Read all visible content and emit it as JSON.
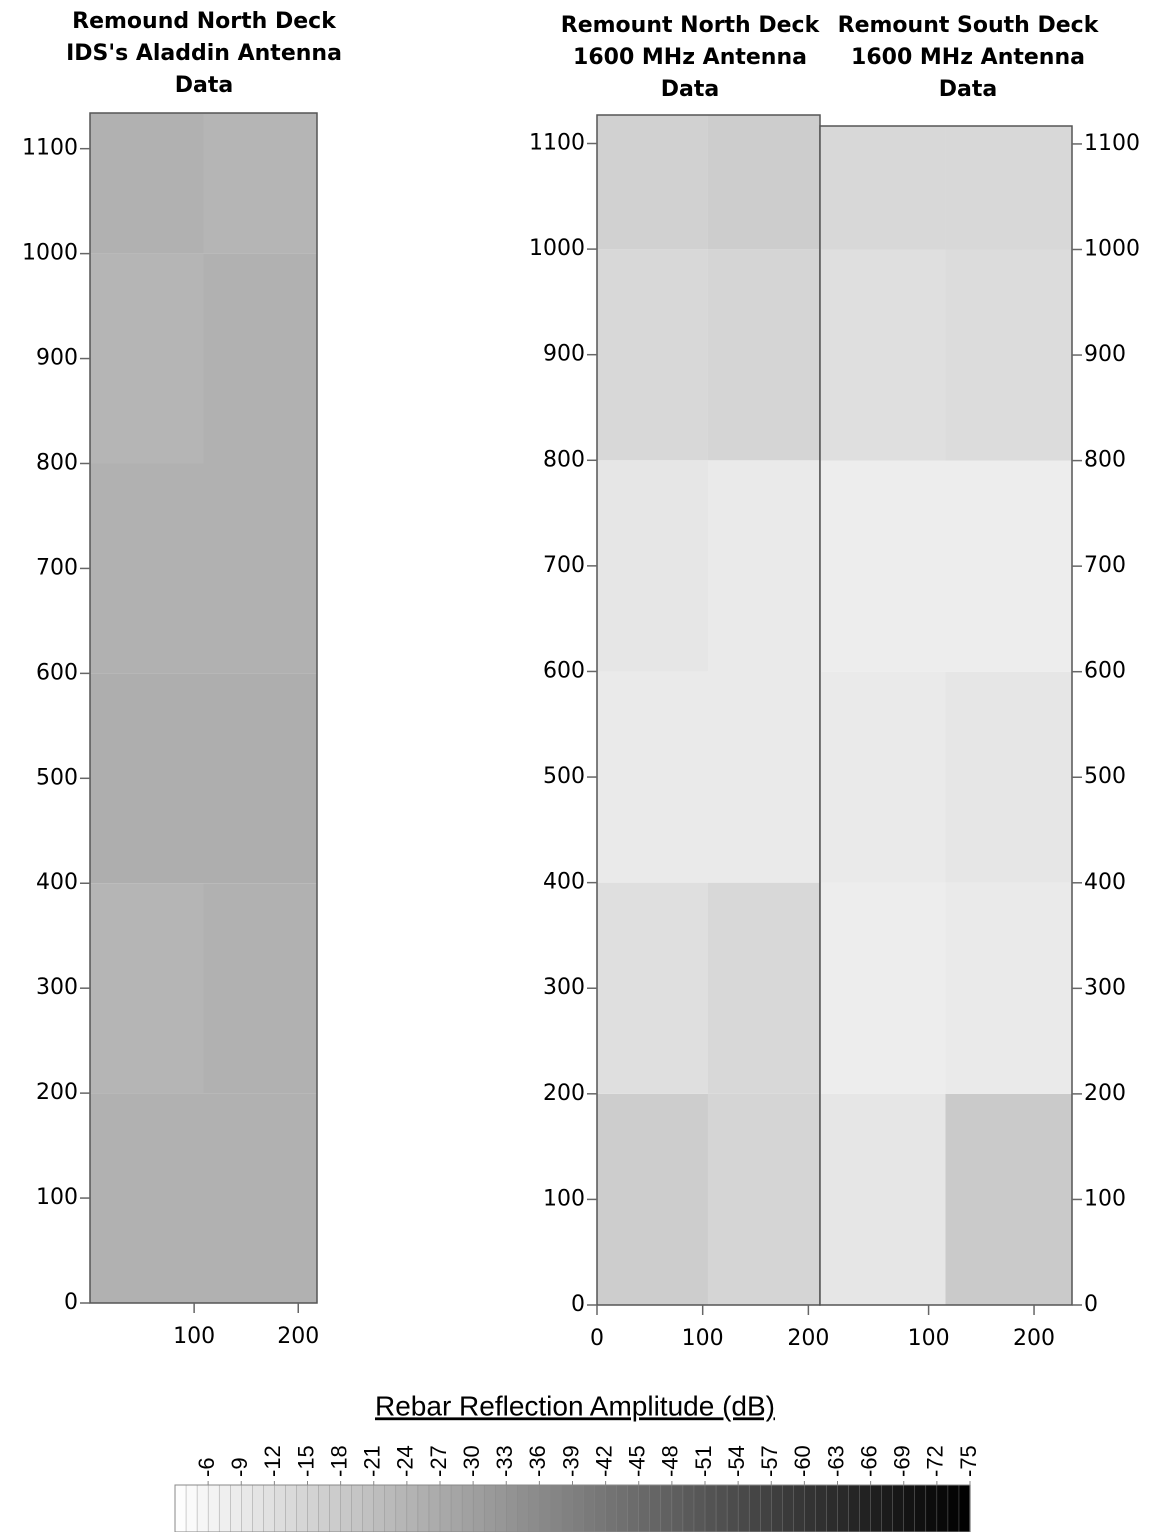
{
  "chart_data": [
    {
      "type": "heatmap",
      "title": [
        "Remound North Deck",
        "IDS's Aladdin Antenna",
        "Data"
      ],
      "yaxis_side": "left",
      "xlim": [
        0,
        218
      ],
      "ylim": [
        0,
        1134
      ],
      "xticks": [
        100,
        200
      ],
      "yticks": [
        0,
        100,
        200,
        300,
        400,
        500,
        600,
        700,
        800,
        900,
        1000,
        1100
      ],
      "xbins": [
        0,
        109,
        218
      ],
      "ybins": [
        0,
        200,
        400,
        600,
        800,
        1000,
        1134
      ],
      "z": [
        [
          -25,
          -25
        ],
        [
          -24,
          -25
        ],
        [
          -26,
          -26
        ],
        [
          -25,
          -25
        ],
        [
          -24,
          -25
        ],
        [
          -25,
          -24
        ]
      ]
    },
    {
      "type": "heatmap",
      "title": [
        "Remount North Deck",
        "1600 MHz Antenna",
        "Data"
      ],
      "yaxis_side": "left",
      "xlim": [
        0,
        211
      ],
      "ylim": [
        0,
        1127
      ],
      "xticks": [
        0,
        100,
        200
      ],
      "yticks": [
        0,
        100,
        200,
        300,
        400,
        500,
        600,
        700,
        800,
        900,
        1000,
        1100
      ],
      "xbins": [
        0,
        105,
        211
      ],
      "ybins": [
        0,
        200,
        400,
        600,
        800,
        1000,
        1127
      ],
      "z": [
        [
          -17,
          -15
        ],
        [
          -12,
          -14
        ],
        [
          -9,
          -9
        ],
        [
          -10,
          -9
        ],
        [
          -14,
          -15
        ],
        [
          -16,
          -17
        ]
      ]
    },
    {
      "type": "heatmap",
      "title": [
        "Remount South Deck",
        "1600 MHz Antenna",
        "Data"
      ],
      "yaxis_side": "right",
      "xlim": [
        -3,
        236
      ],
      "ylim": [
        0,
        1117
      ],
      "xticks": [
        100,
        200
      ],
      "yticks": [
        0,
        100,
        200,
        300,
        400,
        500,
        600,
        700,
        800,
        900,
        1000,
        1100
      ],
      "xbins": [
        -3,
        116,
        236
      ],
      "ybins": [
        0,
        200,
        400,
        600,
        800,
        1000,
        1117
      ],
      "z": [
        [
          -10,
          -18
        ],
        [
          -8,
          -9
        ],
        [
          -9,
          -10
        ],
        [
          -8,
          -8
        ],
        [
          -12,
          -13
        ],
        [
          -14,
          -14
        ]
      ]
    }
  ],
  "colorbar": {
    "title": "Rebar Reflection Amplitude (dB)",
    "zlim": [
      -3,
      -75
    ],
    "ticks": [
      -6,
      -9,
      -12,
      -15,
      -18,
      -21,
      -24,
      -27,
      -30,
      -33,
      -36,
      -39,
      -42,
      -45,
      -48,
      -51,
      -54,
      -57,
      -60,
      -63,
      -66,
      -69,
      -72,
      -75
    ]
  }
}
